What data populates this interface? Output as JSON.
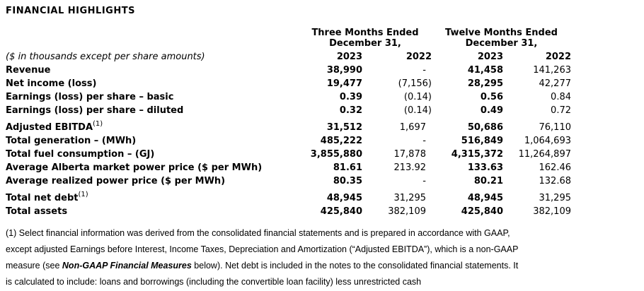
{
  "title": "FINANCIAL HIGHLIGHTS",
  "table": {
    "group_headers": [
      {
        "line1": "Three Months Ended",
        "line2": "December 31,"
      },
      {
        "line1": "Twelve Months Ended",
        "line2": "December 31,"
      }
    ],
    "unit_note": "($ in thousands except per share amounts)",
    "year_columns": [
      "2023",
      "2022",
      "2023",
      "2022"
    ],
    "rows": [
      {
        "label": "Revenue",
        "values": [
          "38,990",
          "-",
          "41,458",
          "141,263"
        ]
      },
      {
        "label": "Net income (loss)",
        "values": [
          "19,477",
          "(7,156)",
          "28,295",
          "42,277"
        ]
      },
      {
        "label": "Earnings (loss) per share – basic",
        "values": [
          "0.39",
          "(0.14)",
          "0.56",
          "0.84"
        ]
      },
      {
        "label": "Earnings (loss) per share – diluted",
        "values": [
          "0.32",
          "(0.14)",
          "0.49",
          "0.72"
        ]
      },
      {
        "label": "Adjusted EBITDA",
        "sup": "(1)",
        "values": [
          "31,512",
          "1,697",
          "50,686",
          "76,110"
        ]
      },
      {
        "label": "Total generation – (MWh)",
        "values": [
          "485,222",
          "-",
          "516,849",
          "1,064,693"
        ]
      },
      {
        "label": "Total fuel consumption – (GJ)",
        "values": [
          "3,855,880",
          "17,878",
          "4,315,372",
          "11,264,897"
        ]
      },
      {
        "label": "Average Alberta market power price ($ per MWh)",
        "values": [
          "81.61",
          "213.92",
          "133.63",
          "162.46"
        ]
      },
      {
        "label": "Average realized power price ($ per MWh)",
        "values": [
          "80.35",
          "-",
          "80.21",
          "132.68"
        ]
      },
      {
        "label": "Total net debt",
        "sup": "(1)",
        "values": [
          "48,945",
          "31,295",
          "48,945",
          "31,295"
        ]
      },
      {
        "label": "Total assets",
        "values": [
          "425,840",
          "382,109",
          "425,840",
          "382,109"
        ]
      }
    ]
  },
  "footnote": {
    "line1": "(1) Select financial information was derived from the consolidated financial statements and is prepared in accordance with GAAP,",
    "line2": "except adjusted Earnings before Interest, Income Taxes, Depreciation and Amortization (“Adjusted EBITDA”), which is a non-GAAP",
    "line3_pre": "measure (see ",
    "line3_emphasis": "Non-GAAP Financial Measures",
    "line3_post": " below). Net debt is included in the notes to the consolidated financial statements. It",
    "line4": "is calculated to include: loans and borrowings (including the convertible loan facility) less unrestricted cash"
  }
}
